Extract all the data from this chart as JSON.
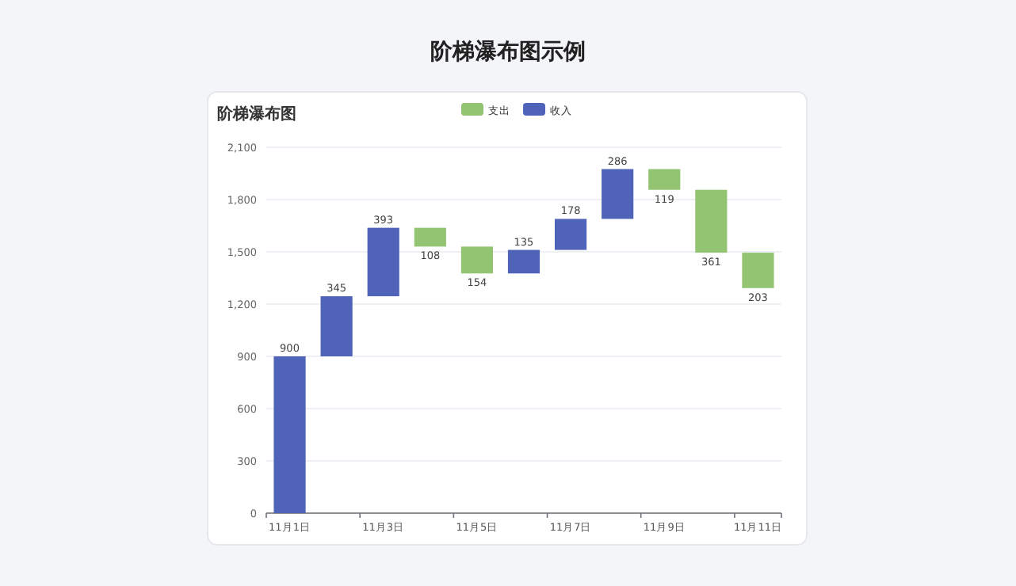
{
  "chart_data": {
    "type": "bar",
    "title": "阶梯瀑布图示例",
    "subtitle": "阶梯瀑布图",
    "categories": [
      "11月1日",
      null,
      "11月3日",
      null,
      "11月5日",
      null,
      "11月7日",
      null,
      "11月9日",
      null,
      "11月11日"
    ],
    "series": [
      {
        "name": "支出",
        "color": "#93c472",
        "values": [
          null,
          null,
          null,
          108,
          154,
          null,
          null,
          null,
          119,
          361,
          203
        ],
        "base": [
          null,
          null,
          null,
          1530,
          1376,
          null,
          null,
          null,
          1856,
          1495,
          1292
        ],
        "value_labels": [
          null,
          null,
          null,
          "108",
          "154",
          null,
          null,
          null,
          "119",
          "361",
          "203"
        ]
      },
      {
        "name": "收入",
        "color": "#4f63b8",
        "values": [
          900,
          345,
          393,
          null,
          null,
          135,
          178,
          286,
          null,
          null,
          null
        ],
        "base": [
          0,
          900,
          1245,
          null,
          null,
          1376,
          1511,
          1689,
          null,
          null,
          null
        ],
        "value_labels": [
          "900",
          "345",
          "393",
          null,
          null,
          "135",
          "178",
          "286",
          null,
          null,
          null
        ]
      }
    ],
    "ylim": [
      0,
      2100
    ],
    "yticks": [
      0,
      300,
      600,
      900,
      {
        "value": 1200,
        "label": "1,200"
      },
      {
        "value": 1500,
        "label": "1,500"
      },
      {
        "value": 1800,
        "label": "1,800"
      },
      {
        "value": 2100,
        "label": "2,100"
      }
    ],
    "grid": "y",
    "legend": "top"
  }
}
